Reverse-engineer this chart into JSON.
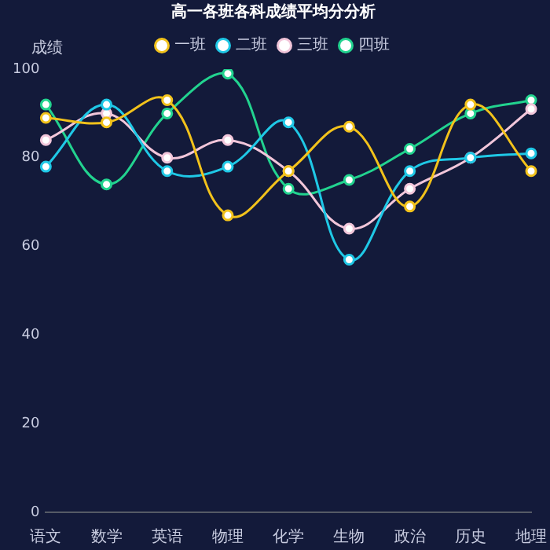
{
  "chart_data": {
    "type": "line",
    "title": "高一各班各科成绩平均分分析",
    "ylabel": "成绩",
    "categories": [
      "语文",
      "数学",
      "英语",
      "物理",
      "化学",
      "生物",
      "政治",
      "历史",
      "地理"
    ],
    "series": [
      {
        "name": "一班",
        "color": "#f2c21b",
        "values": [
          89,
          88,
          93,
          67,
          77,
          87,
          69,
          92,
          77
        ]
      },
      {
        "name": "二班",
        "color": "#1fc8e6",
        "values": [
          78,
          92,
          77,
          78,
          88,
          57,
          77,
          80,
          81
        ]
      },
      {
        "name": "三班",
        "color": "#f2c6da",
        "values": [
          84,
          90,
          80,
          84,
          77,
          64,
          73,
          80,
          91
        ]
      },
      {
        "name": "四班",
        "color": "#22d38f",
        "values": [
          92,
          74,
          90,
          99,
          73,
          75,
          82,
          90,
          93
        ]
      }
    ],
    "ylim": [
      0,
      100
    ],
    "yticks": [
      0,
      20,
      40,
      60,
      80,
      100
    ],
    "grid": false,
    "legend": "top",
    "marker": "circle",
    "line_style": "solid"
  }
}
